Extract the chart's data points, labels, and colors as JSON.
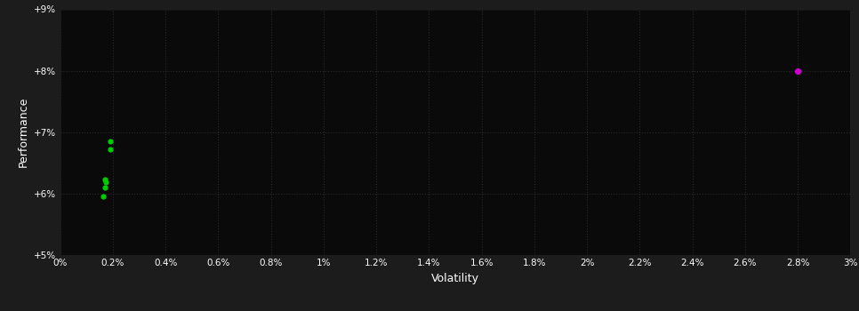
{
  "background_color": "#1c1c1c",
  "plot_bg_color": "#0a0a0a",
  "grid_color": "#2a2a2a",
  "text_color": "#ffffff",
  "xlabel": "Volatility",
  "ylabel": "Performance",
  "xlim": [
    0.0,
    0.03
  ],
  "ylim": [
    0.05,
    0.09
  ],
  "xticks": [
    0.0,
    0.002,
    0.004,
    0.006,
    0.008,
    0.01,
    0.012,
    0.014,
    0.016,
    0.018,
    0.02,
    0.022,
    0.024,
    0.026,
    0.028,
    0.03
  ],
  "yticks": [
    0.05,
    0.06,
    0.07,
    0.08,
    0.09
  ],
  "xtick_labels": [
    "0%",
    "0.2%",
    "0.4%",
    "0.6%",
    "0.8%",
    "1%",
    "1.2%",
    "1.4%",
    "1.6%",
    "1.8%",
    "2%",
    "2.2%",
    "2.4%",
    "2.6%",
    "2.8%",
    "3%"
  ],
  "ytick_labels": [
    "+5%",
    "+6%",
    "+7%",
    "+8%",
    "+9%"
  ],
  "green_points": [
    [
      0.0019,
      0.0685
    ],
    [
      0.0019,
      0.0672
    ],
    [
      0.0017,
      0.0623
    ],
    [
      0.00175,
      0.0618
    ],
    [
      0.0017,
      0.061
    ],
    [
      0.00165,
      0.0595
    ]
  ],
  "magenta_points": [
    [
      0.028,
      0.08
    ]
  ],
  "point_size_green": 12,
  "point_size_magenta": 18
}
